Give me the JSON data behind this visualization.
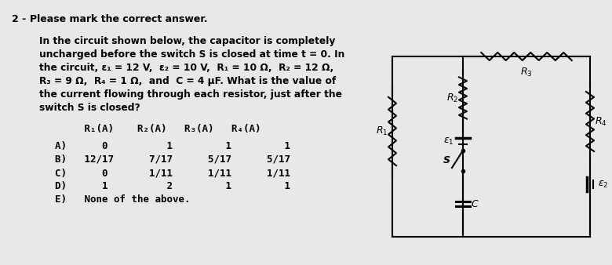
{
  "title_num": "2 -",
  "title_text": "Please mark the correct answer.",
  "problem_text_lines": [
    "In the circuit shown below, the capacitor is completely",
    "uncharged before the switch S is closed at time t = 0. In",
    "the circuit, ε₁ = 12 V,  ε₂ = 10 V,  R₁ = 10 Ω,  R₂ = 12 Ω,",
    "R₃ = 9 Ω,  R₄ = 1 Ω,  and  C = 4 μF. What is the value of",
    "the current flowing through each resistor, just after the",
    "switch S is closed?"
  ],
  "table_header": "     R₁(A)    R₂(A)   R₃(A)   R₄(A)",
  "options": [
    "A)      0          1         1         1",
    "B)   12/17      7/17      5/17      5/17",
    "C)      0       1/11      1/11      1/11",
    "D)      1          2         1         1",
    "E)   None of the above."
  ],
  "bg_color": "#e8e8e8",
  "text_color": "#000000"
}
